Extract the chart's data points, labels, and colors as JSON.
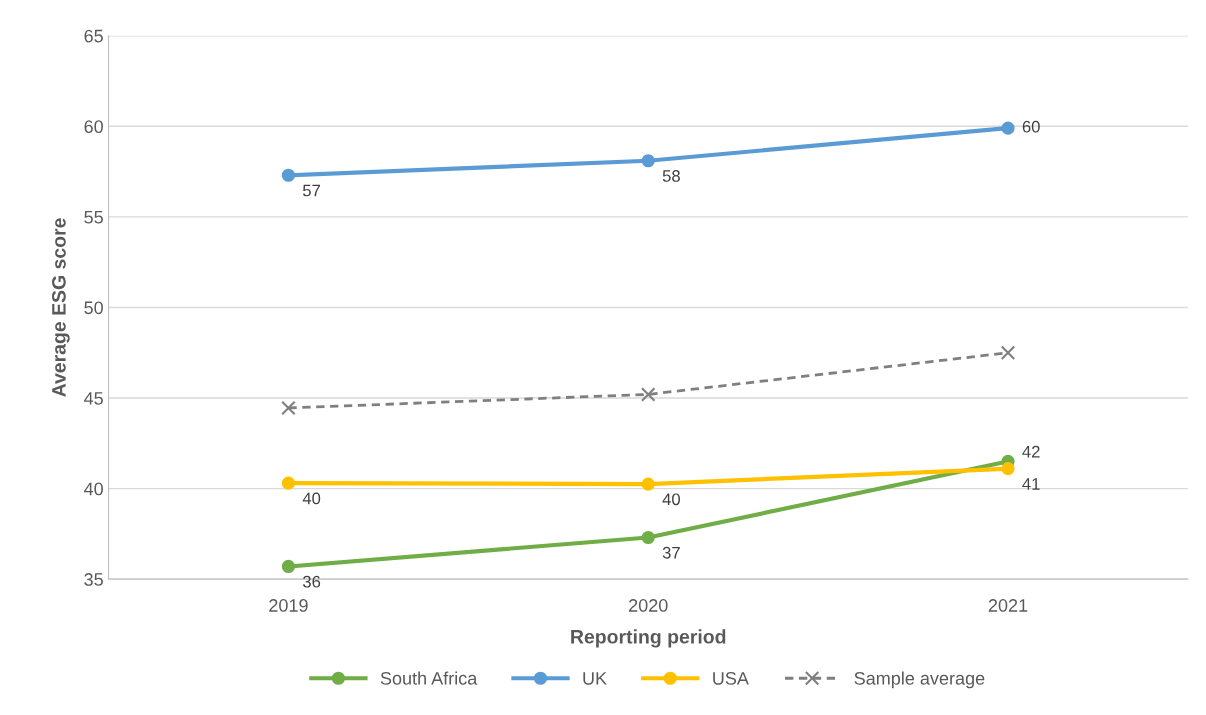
{
  "chart_data": {
    "type": "line",
    "xlabel": "Reporting period",
    "ylabel": "Average ESG score",
    "categories": [
      "2019",
      "2020",
      "2021"
    ],
    "series": [
      {
        "name": "South Africa",
        "color": "#70ad47",
        "marker": "circle",
        "line_style": "solid",
        "values": [
          35.7,
          37.3,
          41.5
        ],
        "value_labels": [
          "36",
          "37",
          "42"
        ]
      },
      {
        "name": "UK",
        "color": "#5b9bd5",
        "marker": "circle",
        "line_style": "solid",
        "values": [
          57.3,
          58.1,
          59.9
        ],
        "value_labels": [
          "57",
          "58",
          "60"
        ]
      },
      {
        "name": "USA",
        "color": "#ffc000",
        "marker": "circle",
        "line_style": "solid",
        "values": [
          40.3,
          40.25,
          41.1
        ],
        "value_labels": [
          "40",
          "40",
          "41"
        ]
      },
      {
        "name": "Sample average",
        "color": "#7f7f7f",
        "marker": "cross",
        "line_style": "dashed",
        "values": [
          44.45,
          45.2,
          47.5
        ]
      }
    ],
    "ylim": [
      35,
      65
    ],
    "yticks": [
      35,
      40,
      45,
      50,
      55,
      60,
      65
    ],
    "grid": "y",
    "legend": "bottom"
  }
}
